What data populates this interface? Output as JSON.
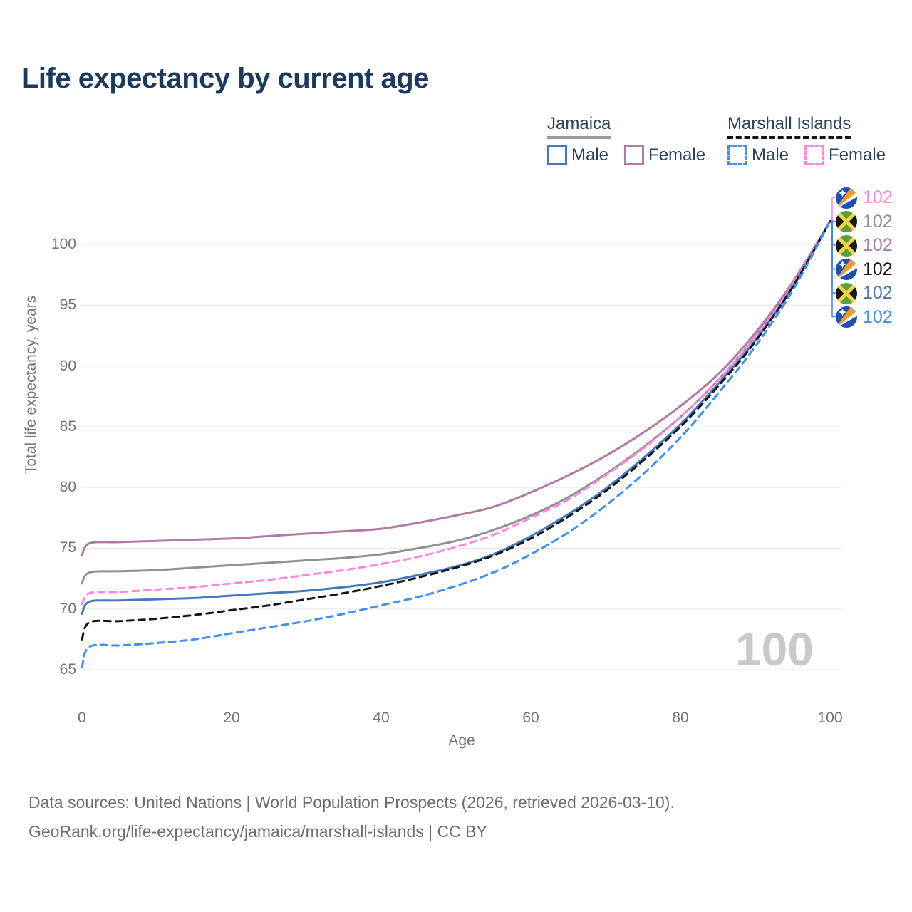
{
  "title": "Life expectancy by current age",
  "legend": {
    "jamaica": {
      "title": "Jamaica",
      "male_label": "Male",
      "female_label": "Female"
    },
    "marshall": {
      "title": "Marshall Islands",
      "male_label": "Male",
      "female_label": "Female"
    }
  },
  "hover_age_label": "100",
  "footer": {
    "line1": "Data sources: United Nations | World Population Prospects (2026, retrieved 2026-03-10).",
    "line2": "GeoRank.org/life-expectancy/jamaica/marshall-islands | CC BY"
  },
  "colors": {
    "title_text": "#1c3a5e",
    "legend_text": "#2c4257",
    "axis_text": "#757575",
    "gridline": "#ebebeb",
    "watermark": "#c9c9c9",
    "jamaica_total": "#919191",
    "jamaica_male": "#4878b9",
    "jamaica_female": "#b279a7",
    "marshall_total": "#141414",
    "marshall_male": "#3f8ff7",
    "marshall_female": "#ff85e3"
  },
  "chart_data": {
    "type": "line",
    "title": "Life expectancy by current age",
    "xlabel": "Age",
    "ylabel": "Total life expectancy, years",
    "x_ticks": [
      0,
      20,
      40,
      60,
      80,
      100
    ],
    "y_ticks": [
      65,
      70,
      75,
      80,
      85,
      90,
      95,
      100
    ],
    "xlim": [
      0,
      100
    ],
    "ylim": [
      65,
      103.5
    ],
    "grid": "horizontal-only",
    "legend_position": "top-right",
    "ages": [
      0,
      1,
      5,
      10,
      15,
      20,
      25,
      30,
      35,
      40,
      45,
      50,
      55,
      60,
      65,
      70,
      75,
      80,
      85,
      90,
      95,
      100
    ],
    "series": [
      {
        "id": "jamaica_total",
        "country": "Jamaica",
        "sex": "Total",
        "color": "#919191",
        "style": "solid",
        "values": [
          72.1,
          73.0,
          73.1,
          73.2,
          73.4,
          73.6,
          73.8,
          74.0,
          74.2,
          74.5,
          75.0,
          75.6,
          76.5,
          77.7,
          79.2,
          81.1,
          83.3,
          85.8,
          88.8,
          92.4,
          96.7,
          101.9
        ]
      },
      {
        "id": "jamaica_female",
        "country": "Jamaica",
        "sex": "Female",
        "color": "#b279a7",
        "style": "solid",
        "values": [
          74.4,
          75.4,
          75.5,
          75.6,
          75.7,
          75.8,
          76.0,
          76.2,
          76.4,
          76.6,
          77.1,
          77.7,
          78.4,
          79.6,
          81.0,
          82.6,
          84.5,
          86.7,
          89.3,
          92.7,
          96.9,
          101.9
        ]
      },
      {
        "id": "marshall_female",
        "country": "Marshall Islands",
        "sex": "Female",
        "color": "#ff85e3",
        "style": "dashed",
        "values": [
          70.4,
          71.3,
          71.4,
          71.6,
          71.8,
          72.1,
          72.4,
          72.8,
          73.2,
          73.7,
          74.3,
          75.1,
          76.1,
          77.5,
          79.0,
          81.0,
          83.2,
          85.8,
          88.8,
          92.4,
          96.7,
          101.9
        ]
      },
      {
        "id": "jamaica_male",
        "country": "Jamaica",
        "sex": "Male",
        "color": "#4878b9",
        "style": "solid",
        "values": [
          69.6,
          70.6,
          70.7,
          70.8,
          70.9,
          71.1,
          71.3,
          71.5,
          71.8,
          72.2,
          72.8,
          73.5,
          74.5,
          76.0,
          77.8,
          79.9,
          82.4,
          85.2,
          88.5,
          92.1,
          96.5,
          101.9
        ]
      },
      {
        "id": "marshall_total",
        "country": "Marshall Islands",
        "sex": "Total",
        "color": "#141414",
        "style": "dashed",
        "values": [
          67.5,
          68.9,
          69.0,
          69.2,
          69.5,
          69.9,
          70.3,
          70.8,
          71.3,
          71.9,
          72.6,
          73.4,
          74.4,
          75.8,
          77.6,
          79.7,
          82.2,
          85.0,
          88.3,
          92.0,
          96.5,
          101.9
        ]
      },
      {
        "id": "marshall_male",
        "country": "Marshall Islands",
        "sex": "Male",
        "color": "#3f8ff7",
        "style": "dashed",
        "values": [
          65.2,
          66.9,
          67.0,
          67.2,
          67.5,
          68.0,
          68.5,
          69.0,
          69.6,
          70.3,
          71.0,
          71.9,
          73.0,
          74.5,
          76.3,
          78.5,
          81.1,
          84.1,
          87.7,
          91.6,
          96.2,
          101.9
        ]
      }
    ],
    "end_labels": [
      {
        "series": "marshall_female",
        "flag": "marshall-islands",
        "value": "102",
        "color": "#ff85e3"
      },
      {
        "series": "jamaica_total",
        "flag": "jamaica",
        "value": "102",
        "color": "#919191"
      },
      {
        "series": "jamaica_female",
        "flag": "jamaica",
        "value": "102",
        "color": "#b279a7"
      },
      {
        "series": "marshall_total",
        "flag": "marshall-islands",
        "value": "102",
        "color": "#141414"
      },
      {
        "series": "jamaica_male",
        "flag": "jamaica",
        "value": "102",
        "color": "#4878b9"
      },
      {
        "series": "marshall_male",
        "flag": "marshall-islands",
        "value": "102",
        "color": "#3f8ff7"
      }
    ]
  }
}
